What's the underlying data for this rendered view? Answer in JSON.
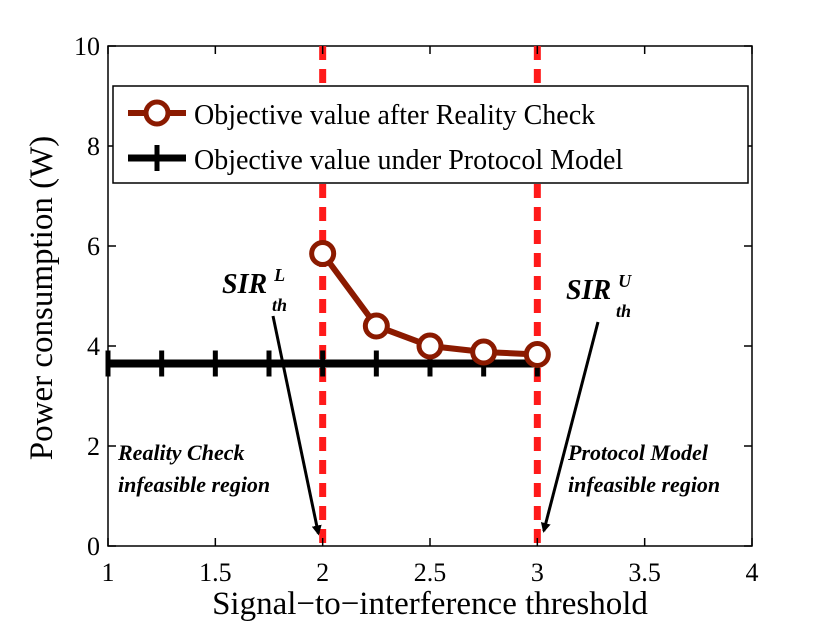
{
  "chart_data": {
    "type": "line",
    "xlabel": "Signal−to−interference threshold",
    "ylabel": "Power consumption (W)",
    "xlim": [
      1,
      4
    ],
    "ylim": [
      0,
      10
    ],
    "x_ticks": [
      1,
      1.5,
      2,
      2.5,
      3,
      3.5,
      4
    ],
    "x_tick_labels": [
      "1",
      "1.5",
      "2",
      "2.5",
      "3",
      "3.5",
      "4"
    ],
    "y_ticks": [
      0,
      2,
      4,
      6,
      8,
      10
    ],
    "y_tick_labels": [
      "0",
      "2",
      "4",
      "6",
      "8",
      "10"
    ],
    "grid": false,
    "legend_position": "top",
    "series": [
      {
        "name": "Objective value after Reality Check",
        "color": "#8b1a00",
        "marker": "circle",
        "x": [
          2,
          2.25,
          2.5,
          2.75,
          3
        ],
        "y": [
          5.85,
          4.4,
          4.0,
          3.88,
          3.83
        ]
      },
      {
        "name": "Objective value under Protocol Model",
        "color": "#000000",
        "marker": "plus",
        "x": [
          1,
          1.25,
          1.5,
          1.75,
          2,
          2.25,
          2.5,
          2.75,
          3
        ],
        "y": [
          3.65,
          3.65,
          3.65,
          3.65,
          3.65,
          3.65,
          3.65,
          3.65,
          3.65
        ]
      }
    ],
    "vertical_lines": [
      {
        "x": 2,
        "color": "#ff1a1a",
        "style": "dashed"
      },
      {
        "x": 3,
        "color": "#ff1a1a",
        "style": "dashed"
      }
    ],
    "annotations": {
      "sir_lower": {
        "main": "SIR",
        "sup": "L",
        "sub": "th",
        "arrow_to": [
          1.98,
          0.25
        ]
      },
      "sir_upper": {
        "main": "SIR",
        "sup": "U",
        "sub": "th",
        "arrow_to": [
          3.03,
          0.3
        ]
      },
      "left_region": [
        "Reality Check",
        "infeasible region"
      ],
      "right_region": [
        "Protocol Model",
        "infeasible region"
      ]
    }
  }
}
